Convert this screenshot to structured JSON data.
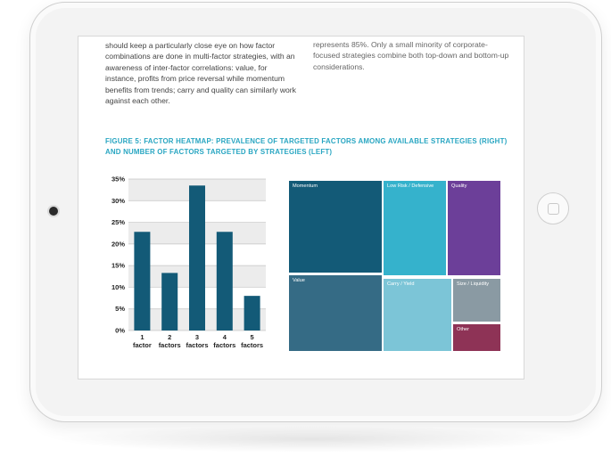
{
  "article": {
    "left_column": "should keep a particularly close eye on how factor combinations are done in multi-factor strategies, with an awareness of inter-factor correlations: value, for instance, profits from price reversal while momentum benefits from trends; carry and quality can similarly work against each other.",
    "right_column": "represents 85%. Only a small minority of corporate-focused strategies combine both top-down and bottom-up considerations."
  },
  "figure": {
    "title": "FIGURE 5: FACTOR HEATMAP: PREVALENCE OF TARGETED FACTORS AMONG AVAILABLE STRATEGIES (RIGHT) AND NUMBER OF FACTORS TARGETED BY STRATEGIES (LEFT)"
  },
  "chart_data": [
    {
      "type": "bar",
      "categories": [
        "1 factor",
        "2 factors",
        "3 factors",
        "4 factors",
        "5 factors"
      ],
      "category_lines": [
        [
          "1",
          "factor"
        ],
        [
          "2",
          "factors"
        ],
        [
          "3",
          "factors"
        ],
        [
          "4",
          "factors"
        ],
        [
          "5",
          "factors"
        ]
      ],
      "values": [
        22.8,
        13.3,
        33.5,
        22.8,
        8.0
      ],
      "ylim": [
        0,
        35
      ],
      "yticks": [
        "0%",
        "5%",
        "10%",
        "15%",
        "20%",
        "25%",
        "30%",
        "35%"
      ],
      "bar_color": "#135a77",
      "grid": true
    },
    {
      "type": "treemap",
      "items": [
        {
          "label": "Momentum",
          "color": "#135a77"
        },
        {
          "label": "Low Risk / Defensive",
          "color": "#35b2cc"
        },
        {
          "label": "Quality",
          "color": "#6c3f99"
        },
        {
          "label": "Value",
          "color": "#356b85"
        },
        {
          "label": "Carry / Yield",
          "color": "#7cc5d7"
        },
        {
          "label": "Size / Liquidity",
          "color": "#8a9aa3"
        },
        {
          "label": "Other",
          "color": "#8e3356"
        }
      ]
    }
  ]
}
